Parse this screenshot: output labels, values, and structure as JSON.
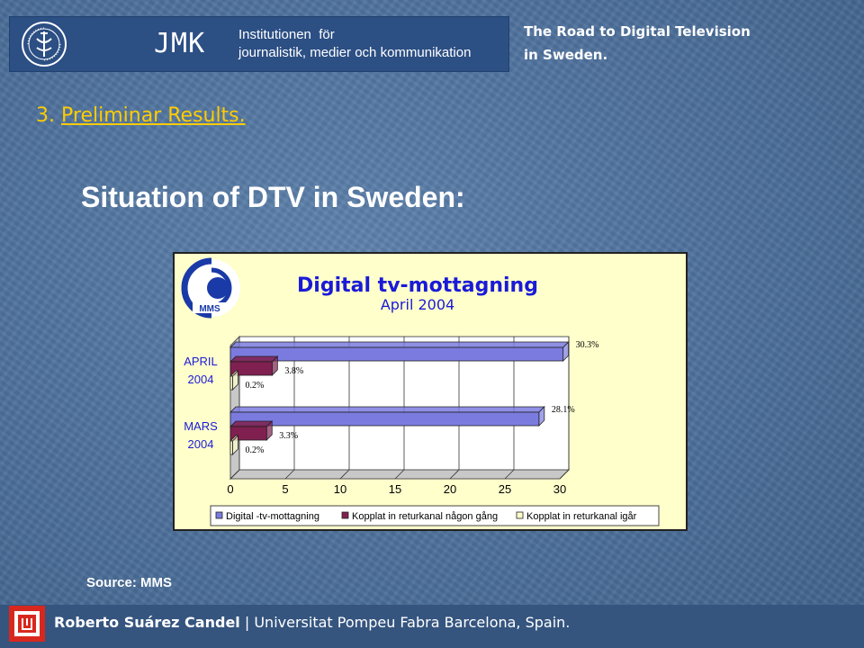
{
  "header": {
    "logo_text": "JMK",
    "institution_line1": "Institutionen  för",
    "institution_line2": "journalistik, medier och kommunikation",
    "seal_icon": "stockholm-university-seal-icon",
    "title_line1": "The Road to Digital Television",
    "title_line2": "in Sweden."
  },
  "section": {
    "number": "3.",
    "label": "Preliminar Results."
  },
  "slide_title": "Situation of DTV in Sweden:",
  "chart_data": {
    "type": "bar",
    "orientation": "horizontal",
    "title": "Digital tv-mottagning",
    "subtitle": "April 2004",
    "logo_text": "MMS",
    "categories": [
      [
        "APRIL",
        "2004"
      ],
      [
        "MARS",
        "2004"
      ]
    ],
    "series": [
      {
        "name": "Digital -tv-mottagning",
        "color": "#7b7bdf",
        "values": [
          30.3,
          28.1
        ],
        "labels": [
          "30.3%",
          "28.1%"
        ]
      },
      {
        "name": "Kopplat in returkanal någon gång",
        "color": "#802050",
        "values": [
          3.8,
          3.3
        ],
        "labels": [
          "3.8%",
          "3.3%"
        ]
      },
      {
        "name": "Kopplat in returkanal igår",
        "color": "#ffffcc",
        "values": [
          0.2,
          0.2
        ],
        "labels": [
          "0.2%",
          "0.2%"
        ]
      }
    ],
    "x_ticks": [
      "0",
      "5",
      "10",
      "15",
      "20",
      "25",
      "30"
    ],
    "xlim": [
      0,
      30
    ],
    "grid": true,
    "legend_position": "bottom"
  },
  "source": "Source: MMS",
  "footer": {
    "author": "Roberto Suárez Candel",
    "separator": " | ",
    "affiliation": "Universitat Pompeu Fabra Barcelona, Spain.",
    "logo_icon": "upf-logo-icon"
  }
}
